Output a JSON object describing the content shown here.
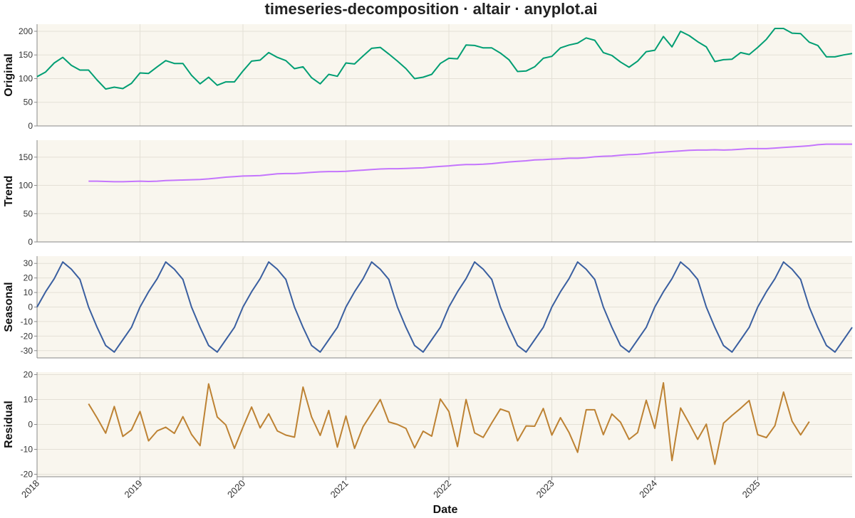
{
  "title": "timeseries-decomposition · altair · anyplot.ai",
  "chart_data": {
    "type": "line",
    "title": "timeseries-decomposition · altair · anyplot.ai",
    "xlabel": "Date",
    "x_start": "2018-01",
    "x_end": "2025-12",
    "x_frequency": "monthly",
    "x_tick_labels": [
      "2018",
      "2019",
      "2020",
      "2021",
      "2022",
      "2023",
      "2024",
      "2025"
    ],
    "panels": [
      {
        "name": "Original",
        "color": "#009E73",
        "ylim": [
          0,
          215
        ],
        "yticks": [
          0,
          50,
          100,
          150,
          200
        ],
        "start_index": 0,
        "values": [
          104,
          114,
          133,
          145,
          128,
          118,
          118,
          97,
          78,
          82,
          79,
          90,
          112,
          111,
          125,
          138,
          132,
          132,
          107,
          89,
          103,
          86,
          93,
          93,
          116,
          137,
          139,
          155,
          145,
          138,
          121,
          125,
          102,
          89,
          109,
          105,
          133,
          131,
          148,
          164,
          166,
          152,
          137,
          121,
          100,
          103,
          109,
          132,
          143,
          142,
          171,
          170,
          165,
          165,
          154,
          140,
          115,
          116,
          125,
          143,
          147,
          165,
          171,
          175,
          186,
          181,
          155,
          149,
          135,
          124,
          137,
          157,
          160,
          189,
          167,
          200,
          191,
          178,
          167,
          136,
          140,
          141,
          155,
          151,
          166,
          183,
          206,
          206,
          196,
          195,
          177,
          170,
          146,
          146,
          150,
          153
        ]
      },
      {
        "name": "Trend",
        "color": "#C475FD",
        "ylim": [
          0,
          180
        ],
        "yticks": [
          0,
          50,
          100,
          150
        ],
        "start_index": 6,
        "values": [
          107.5,
          107.5,
          107,
          106.5,
          106.5,
          107,
          107.5,
          107,
          107.5,
          108.5,
          109,
          109.5,
          110,
          110.5,
          111.5,
          113,
          114.5,
          115.5,
          116.5,
          117,
          117.5,
          119,
          120.5,
          121,
          121,
          122,
          123,
          124,
          124.5,
          124.5,
          125,
          126,
          127,
          128,
          129,
          129.5,
          129.5,
          130,
          130.5,
          131,
          132.5,
          133.5,
          134.5,
          136,
          137,
          137,
          137.5,
          138.5,
          140,
          141.5,
          142.5,
          143.5,
          145,
          145.5,
          146.5,
          147,
          148,
          148,
          149,
          150.5,
          151.5,
          152,
          153.5,
          154.5,
          155,
          156.5,
          158,
          159,
          160,
          161,
          162,
          162.5,
          162.5,
          163,
          162.5,
          163,
          164,
          165,
          165,
          165,
          166,
          167,
          168,
          169,
          170,
          172,
          173,
          173,
          173,
          173
        ]
      },
      {
        "name": "Seasonal",
        "color": "#3A5FA0",
        "ylim": [
          -35,
          35
        ],
        "yticks": [
          -30,
          -20,
          -10,
          0,
          10,
          20,
          30
        ],
        "start_index": 0,
        "values": [
          0,
          10.5,
          19.5,
          31,
          26,
          19,
          0,
          -14,
          -26.5,
          -31,
          -22.5,
          -14,
          0,
          10.5,
          19.5,
          31,
          26,
          19,
          0,
          -14,
          -26.5,
          -31,
          -22.5,
          -14,
          0,
          10.5,
          19.5,
          31,
          26,
          19,
          0,
          -14,
          -26.5,
          -31,
          -22.5,
          -14,
          0,
          10.5,
          19.5,
          31,
          26,
          19,
          0,
          -14,
          -26.5,
          -31,
          -22.5,
          -14,
          0,
          10.5,
          19.5,
          31,
          26,
          19,
          0,
          -14,
          -26.5,
          -31,
          -22.5,
          -14,
          0,
          10.5,
          19.5,
          31,
          26,
          19,
          0,
          -14,
          -26.5,
          -31,
          -22.5,
          -14,
          0,
          10.5,
          19.5,
          31,
          26,
          19,
          0,
          -14,
          -26.5,
          -31,
          -22.5,
          -14,
          0,
          10.5,
          19.5,
          31,
          26,
          19,
          0,
          -14,
          -26.5,
          -31,
          -22.5,
          -14
        ]
      },
      {
        "name": "Residual",
        "color": "#BD8233",
        "ylim": [
          -21,
          21
        ],
        "yticks": [
          -20,
          -10,
          0,
          10,
          20
        ],
        "start_index": 6,
        "values": [
          8.3,
          2.6,
          -3.5,
          7.2,
          -4.8,
          -2.2,
          5.2,
          -6.6,
          -2.6,
          -1.1,
          -3.6,
          3.1,
          -4.0,
          -8.5,
          16.3,
          3.0,
          -0.2,
          -9.6,
          -1.1,
          7.0,
          -1.4,
          4.3,
          -2.6,
          -4.3,
          -5.1,
          15.0,
          3.0,
          -4.4,
          5.6,
          -9.1,
          3.4,
          -9.6,
          -0.9,
          4.5,
          10.0,
          1.0,
          0.0,
          -1.6,
          -9.4,
          -2.7,
          -4.7,
          10.2,
          5.2,
          -8.9,
          10.0,
          -3.4,
          -5.2,
          0.6,
          6.2,
          5.0,
          -6.6,
          -0.6,
          -0.7,
          6.4,
          -4.3,
          2.7,
          -3.2,
          -11.2,
          5.9,
          5.9,
          -4.1,
          4.2,
          0.9,
          -6.0,
          -3.3,
          9.7,
          -1.6,
          16.7,
          -14.5,
          6.6,
          0.5,
          -6.0,
          0.1,
          -16.0,
          0.5,
          3.6,
          6.5,
          9.6,
          -4.1,
          -5.3,
          -0.5,
          13.0,
          1.3,
          -4.2,
          1.1
        ]
      }
    ],
    "grid": true
  }
}
